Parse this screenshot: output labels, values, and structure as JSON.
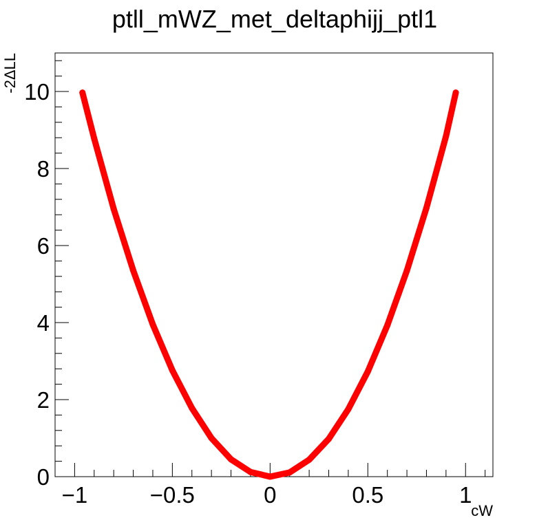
{
  "chart_data": {
    "type": "line",
    "title": "ptll_mWZ_met_deltaphijj_ptl1",
    "xlabel": "cW",
    "ylabel": "-2ΔLL",
    "xlim": [
      -1.1,
      1.14
    ],
    "ylim": [
      0,
      11
    ],
    "x_ticks": [
      -1,
      -0.5,
      0,
      0.5,
      1
    ],
    "x_tick_labels": [
      "−1",
      "−0.5",
      "0",
      "0.5",
      "1"
    ],
    "y_ticks": [
      0,
      2,
      4,
      6,
      8,
      10
    ],
    "y_tick_labels": [
      "0",
      "2",
      "4",
      "6",
      "8",
      "10"
    ],
    "grid": false,
    "series": [
      {
        "color": "#ff0000",
        "x": [
          -0.96,
          -0.9,
          -0.8,
          -0.7,
          -0.6,
          -0.5,
          -0.4,
          -0.3,
          -0.2,
          -0.1,
          0,
          0.1,
          0.2,
          0.3,
          0.4,
          0.5,
          0.6,
          0.7,
          0.8,
          0.9,
          0.95
        ],
        "y": [
          9.97,
          8.78,
          6.95,
          5.35,
          3.95,
          2.76,
          1.78,
          1.0,
          0.45,
          0.12,
          0.0,
          0.11,
          0.44,
          0.98,
          1.75,
          2.73,
          3.93,
          5.35,
          6.98,
          8.84,
          9.97
        ]
      }
    ]
  }
}
